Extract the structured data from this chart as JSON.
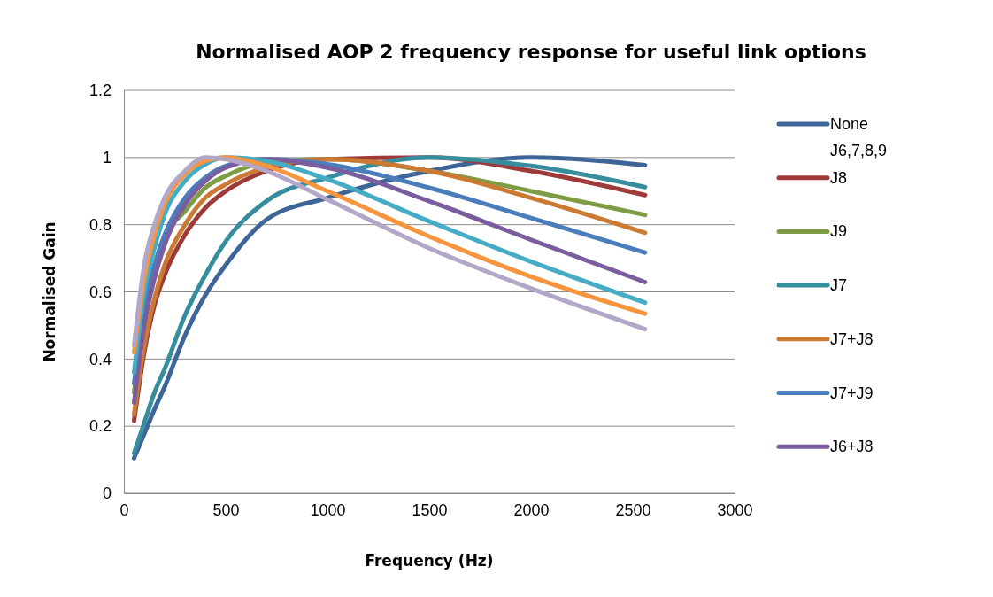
{
  "chart_data": {
    "type": "line",
    "title": "Normalised AOP 2 frequency response for useful link options",
    "xlabel": "Frequency (Hz)",
    "ylabel": "Normalised Gain",
    "x": [
      50,
      100,
      150,
      200,
      300,
      400,
      500,
      700,
      1000,
      1500,
      2000,
      2560
    ],
    "xlim": [
      0,
      3000
    ],
    "xticks": [
      0,
      500,
      1000,
      1500,
      2000,
      2500,
      3000
    ],
    "ylim": [
      0,
      1.2
    ],
    "yticks": [
      0,
      0.2,
      0.4,
      0.6,
      0.8,
      1,
      1.2
    ],
    "grid": "y",
    "legend": "right",
    "marker": "none",
    "line_style": "solid",
    "series": [
      {
        "name": "None J6,7,8,9",
        "color": "#3e6597",
        "values": [
          0.105,
          0.177,
          0.25,
          0.317,
          0.47,
          0.59,
          0.68,
          0.815,
          0.88,
          0.96,
          1.0,
          0.977
        ]
      },
      {
        "name": "J8",
        "color": "#9e3b38",
        "values": [
          0.216,
          0.42,
          0.56,
          0.65,
          0.77,
          0.85,
          0.9,
          0.96,
          0.995,
          1.0,
          0.96,
          0.888
        ]
      },
      {
        "name": "J9",
        "color": "#7e9c43",
        "values": [
          0.3,
          0.52,
          0.66,
          0.76,
          0.84,
          0.91,
          0.945,
          0.985,
          0.995,
          0.96,
          0.9,
          0.829
        ]
      },
      {
        "name": "J7",
        "color": "#378d9e",
        "values": [
          0.12,
          0.21,
          0.3,
          0.37,
          0.53,
          0.65,
          0.75,
          0.87,
          0.94,
          1.0,
          0.975,
          0.912
        ]
      },
      {
        "name": "J7+J8",
        "color": "#cc7a33",
        "values": [
          0.235,
          0.44,
          0.58,
          0.68,
          0.8,
          0.88,
          0.92,
          0.97,
          0.995,
          0.96,
          0.88,
          0.776
        ]
      },
      {
        "name": "J7+J9",
        "color": "#4a7dbb",
        "values": [
          0.327,
          0.55,
          0.68,
          0.77,
          0.88,
          0.94,
          0.975,
          0.995,
          0.98,
          0.91,
          0.82,
          0.717
        ]
      },
      {
        "name": "J6+J8",
        "color": "#7a5d9e",
        "values": [
          0.27,
          0.5,
          0.64,
          0.74,
          0.86,
          0.93,
          0.97,
          0.995,
          0.97,
          0.87,
          0.755,
          0.629
        ]
      },
      {
        "color": "#45acc6",
        "values": [
          0.36,
          0.6,
          0.73,
          0.83,
          0.93,
          0.98,
          1.0,
          0.99,
          0.935,
          0.81,
          0.69,
          0.568
        ]
      },
      {
        "color": "#f7953f",
        "values": [
          0.42,
          0.64,
          0.77,
          0.86,
          0.95,
          0.99,
          1.0,
          0.975,
          0.9,
          0.765,
          0.645,
          0.535
        ]
      },
      {
        "color": "#b2a7c8",
        "values": [
          0.44,
          0.68,
          0.8,
          0.88,
          0.96,
          1.0,
          0.995,
          0.96,
          0.875,
          0.73,
          0.61,
          0.489
        ]
      }
    ]
  }
}
